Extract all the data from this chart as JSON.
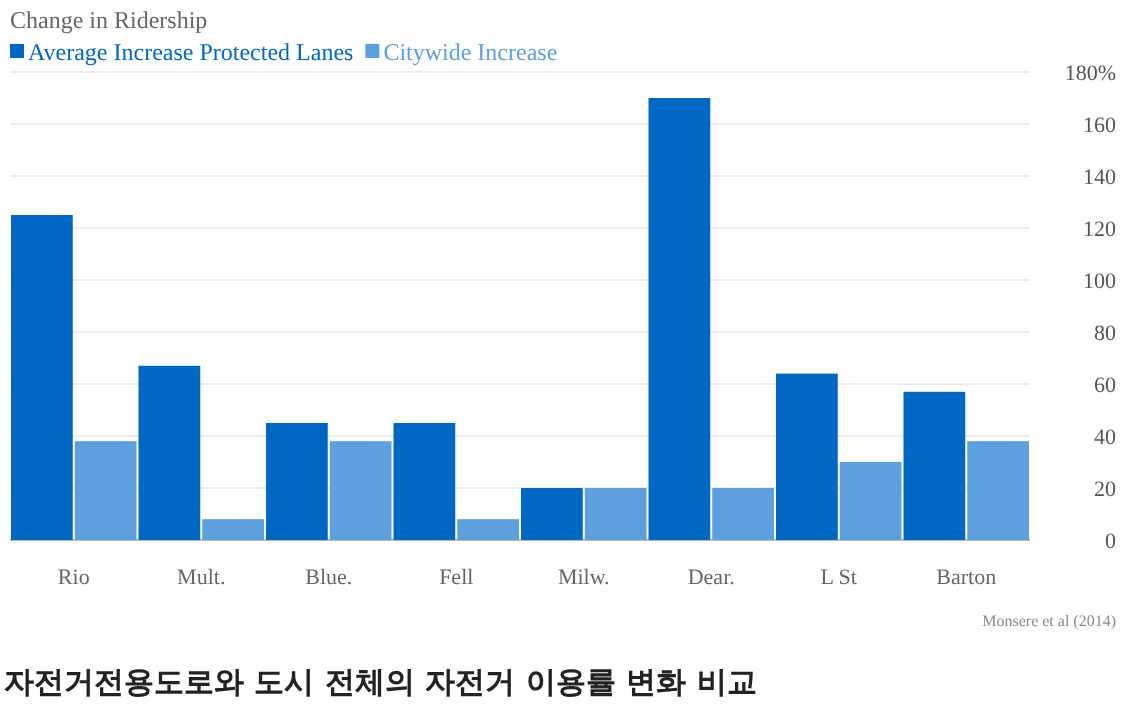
{
  "chart_data": {
    "type": "bar",
    "title": "Change in Ridership",
    "categories": [
      "Rio",
      "Mult.",
      "Blue.",
      "Fell",
      "Milw.",
      "Dear.",
      "L St",
      "Barton"
    ],
    "series": [
      {
        "name": "Average Increase Protected Lanes",
        "color": "#0068c2",
        "values": [
          125,
          67,
          45,
          45,
          20,
          170,
          64,
          57
        ]
      },
      {
        "name": "Citywide Increase",
        "color": "#5e9fdd",
        "values": [
          38,
          8,
          38,
          8,
          20,
          20,
          30,
          38
        ]
      }
    ],
    "ylim": [
      0,
      180
    ],
    "yticks": [
      0,
      20,
      40,
      60,
      80,
      100,
      120,
      140,
      160,
      {
        "value": 180,
        "label": "180%"
      }
    ],
    "grid": "y",
    "legend": "top left",
    "annotations": [
      "Monsere et al (2014)",
      "자전거전용도로와 도시 전체의 자전거 이용률 변화 비교"
    ]
  }
}
